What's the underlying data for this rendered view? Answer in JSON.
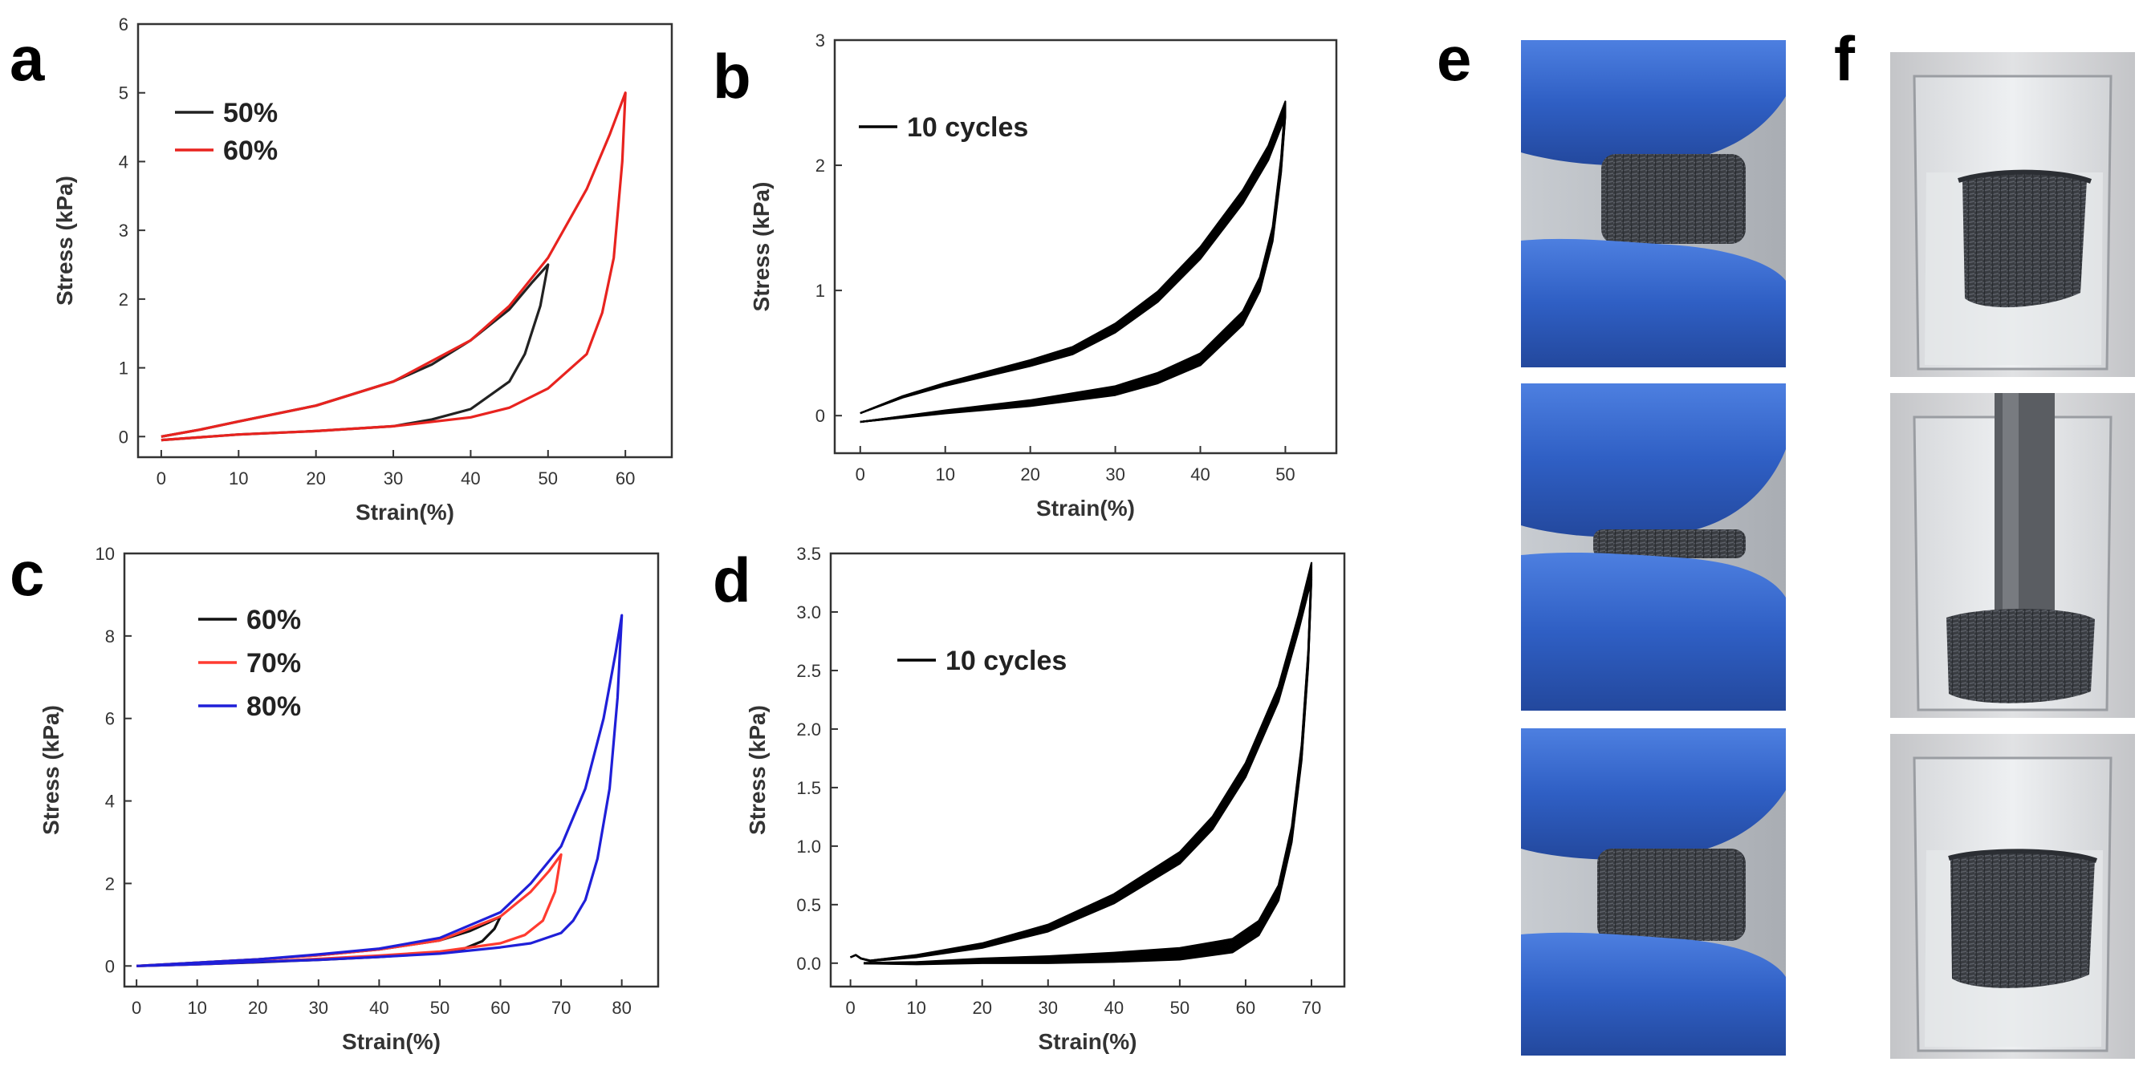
{
  "panel_letters": [
    "a",
    "b",
    "c",
    "d",
    "e",
    "f"
  ],
  "chart_data": [
    {
      "id": "a",
      "type": "line",
      "title": "",
      "xlabel": "Strain(%)",
      "ylabel": "Stress (kPa)",
      "xlim": [
        -3,
        66
      ],
      "ylim": [
        -0.3,
        6
      ],
      "xticks": [
        0,
        10,
        20,
        30,
        40,
        50,
        60
      ],
      "yticks": [
        0,
        1,
        2,
        3,
        4,
        5,
        6
      ],
      "xtick_labels": [
        "0",
        "10",
        "20",
        "30",
        "40",
        "50",
        "60"
      ],
      "ytick_labels": [
        "0",
        "1",
        "2",
        "3",
        "4",
        "5",
        "6"
      ],
      "legend_position": "top-left",
      "grid": false,
      "series": [
        {
          "name": "50%",
          "color": "#222222",
          "loading": [
            [
              0,
              0
            ],
            [
              5,
              0.1
            ],
            [
              10,
              0.22
            ],
            [
              20,
              0.45
            ],
            [
              30,
              0.8
            ],
            [
              35,
              1.05
            ],
            [
              40,
              1.4
            ],
            [
              45,
              1.85
            ],
            [
              48,
              2.25
            ],
            [
              50,
              2.5
            ]
          ],
          "unloading": [
            [
              50,
              2.5
            ],
            [
              49,
              1.9
            ],
            [
              47,
              1.2
            ],
            [
              45,
              0.8
            ],
            [
              40,
              0.4
            ],
            [
              35,
              0.25
            ],
            [
              30,
              0.15
            ],
            [
              20,
              0.08
            ],
            [
              10,
              0.03
            ],
            [
              0,
              -0.05
            ]
          ]
        },
        {
          "name": "60%",
          "color": "#e8231f",
          "loading": [
            [
              0,
              0
            ],
            [
              5,
              0.1
            ],
            [
              10,
              0.22
            ],
            [
              20,
              0.45
            ],
            [
              30,
              0.8
            ],
            [
              40,
              1.4
            ],
            [
              45,
              1.9
            ],
            [
              50,
              2.6
            ],
            [
              55,
              3.6
            ],
            [
              58,
              4.4
            ],
            [
              60,
              5.0
            ]
          ],
          "unloading": [
            [
              60,
              5.0
            ],
            [
              59.6,
              4.0
            ],
            [
              58.5,
              2.6
            ],
            [
              57,
              1.8
            ],
            [
              55,
              1.2
            ],
            [
              50,
              0.7
            ],
            [
              45,
              0.42
            ],
            [
              40,
              0.28
            ],
            [
              30,
              0.15
            ],
            [
              20,
              0.08
            ],
            [
              10,
              0.03
            ],
            [
              0,
              -0.05
            ]
          ]
        }
      ]
    },
    {
      "id": "b",
      "type": "line",
      "title": "",
      "xlabel": "Strain(%)",
      "ylabel": "Stress (kPa)",
      "xlim": [
        -3,
        56
      ],
      "ylim": [
        -0.3,
        3
      ],
      "xticks": [
        0,
        10,
        20,
        30,
        40,
        50
      ],
      "yticks": [
        0,
        1,
        2,
        3
      ],
      "xtick_labels": [
        "0",
        "10",
        "20",
        "30",
        "40",
        "50"
      ],
      "ytick_labels": [
        "0",
        "1",
        "2",
        "3"
      ],
      "legend_position": "top-left",
      "grid": false,
      "series": [
        {
          "name": "10 cycles",
          "color": "#000000",
          "cycles": 10,
          "loading": [
            [
              0,
              0.02
            ],
            [
              5,
              0.15
            ],
            [
              10,
              0.25
            ],
            [
              20,
              0.42
            ],
            [
              25,
              0.52
            ],
            [
              30,
              0.7
            ],
            [
              35,
              0.95
            ],
            [
              40,
              1.3
            ],
            [
              45,
              1.75
            ],
            [
              48,
              2.1
            ],
            [
              50,
              2.45
            ]
          ],
          "unloading": [
            [
              50,
              2.45
            ],
            [
              49.5,
              2.0
            ],
            [
              48.5,
              1.45
            ],
            [
              47,
              1.05
            ],
            [
              45,
              0.78
            ],
            [
              40,
              0.45
            ],
            [
              35,
              0.3
            ],
            [
              30,
              0.2
            ],
            [
              20,
              0.1
            ],
            [
              10,
              0.03
            ],
            [
              0,
              -0.05
            ]
          ]
        }
      ]
    },
    {
      "id": "c",
      "type": "line",
      "title": "",
      "xlabel": "Strain(%)",
      "ylabel": "Stress (kPa)",
      "xlim": [
        -2,
        86
      ],
      "ylim": [
        -0.5,
        10
      ],
      "xticks": [
        0,
        10,
        20,
        30,
        40,
        50,
        60,
        70,
        80
      ],
      "yticks": [
        0,
        2,
        4,
        6,
        8,
        10
      ],
      "xtick_labels": [
        "0",
        "10",
        "20",
        "30",
        "40",
        "50",
        "60",
        "70",
        "80"
      ],
      "ytick_labels": [
        "0",
        "2",
        "4",
        "6",
        "8",
        "10"
      ],
      "legend_position": "top-left",
      "grid": false,
      "series": [
        {
          "name": "60%",
          "color": "#111111",
          "loading": [
            [
              0,
              0
            ],
            [
              10,
              0.08
            ],
            [
              20,
              0.16
            ],
            [
              30,
              0.26
            ],
            [
              40,
              0.4
            ],
            [
              50,
              0.62
            ],
            [
              55,
              0.85
            ],
            [
              58,
              1.05
            ],
            [
              60,
              1.2
            ]
          ],
          "unloading": [
            [
              60,
              1.2
            ],
            [
              59,
              0.9
            ],
            [
              57,
              0.6
            ],
            [
              54,
              0.42
            ],
            [
              50,
              0.32
            ],
            [
              40,
              0.22
            ],
            [
              30,
              0.15
            ],
            [
              20,
              0.09
            ],
            [
              10,
              0.04
            ],
            [
              0,
              0
            ]
          ]
        },
        {
          "name": "70%",
          "color": "#ff3b30",
          "loading": [
            [
              0,
              0
            ],
            [
              10,
              0.08
            ],
            [
              20,
              0.16
            ],
            [
              30,
              0.26
            ],
            [
              40,
              0.4
            ],
            [
              50,
              0.62
            ],
            [
              60,
              1.2
            ],
            [
              65,
              1.8
            ],
            [
              68,
              2.3
            ],
            [
              70,
              2.7
            ]
          ],
          "unloading": [
            [
              70,
              2.7
            ],
            [
              69,
              1.8
            ],
            [
              67,
              1.1
            ],
            [
              64,
              0.75
            ],
            [
              60,
              0.55
            ],
            [
              50,
              0.35
            ],
            [
              40,
              0.25
            ],
            [
              30,
              0.17
            ],
            [
              20,
              0.1
            ],
            [
              10,
              0.04
            ],
            [
              0,
              0
            ]
          ]
        },
        {
          "name": "80%",
          "color": "#1f1fd8",
          "loading": [
            [
              0,
              0
            ],
            [
              10,
              0.08
            ],
            [
              20,
              0.16
            ],
            [
              30,
              0.28
            ],
            [
              40,
              0.42
            ],
            [
              50,
              0.68
            ],
            [
              60,
              1.3
            ],
            [
              65,
              2.0
            ],
            [
              70,
              2.9
            ],
            [
              74,
              4.3
            ],
            [
              77,
              6.0
            ],
            [
              79,
              7.6
            ],
            [
              80,
              8.5
            ]
          ],
          "unloading": [
            [
              80,
              8.5
            ],
            [
              79.3,
              6.5
            ],
            [
              78,
              4.3
            ],
            [
              76,
              2.6
            ],
            [
              74,
              1.6
            ],
            [
              72,
              1.1
            ],
            [
              70,
              0.8
            ],
            [
              65,
              0.55
            ],
            [
              60,
              0.45
            ],
            [
              50,
              0.3
            ],
            [
              40,
              0.22
            ],
            [
              30,
              0.15
            ],
            [
              20,
              0.1
            ],
            [
              10,
              0.04
            ],
            [
              0,
              0
            ]
          ]
        }
      ]
    },
    {
      "id": "d",
      "type": "line",
      "title": "",
      "xlabel": "Strain(%)",
      "ylabel": "Stress (kPa)",
      "xlim": [
        -3,
        75
      ],
      "ylim": [
        -0.2,
        3.5
      ],
      "xticks": [
        0,
        10,
        20,
        30,
        40,
        50,
        60,
        70
      ],
      "yticks": [
        0,
        0.5,
        1,
        1.5,
        2,
        2.5,
        3,
        3.5
      ],
      "xtick_labels": [
        "0",
        "10",
        "20",
        "30",
        "40",
        "50",
        "60",
        "70"
      ],
      "ytick_labels": [
        "0.0",
        "0.5",
        "1.0",
        "1.5",
        "2.0",
        "2.5",
        "3.0",
        "3.5"
      ],
      "legend_position": "top-left",
      "grid": false,
      "series": [
        {
          "name": "10 cycles",
          "color": "#000000",
          "cycles": 10,
          "loading": [
            [
              0,
              0.05
            ],
            [
              0.8,
              0.07
            ],
            [
              1.6,
              0.04
            ],
            [
              3,
              0.02
            ],
            [
              10,
              0.06
            ],
            [
              20,
              0.15
            ],
            [
              30,
              0.3
            ],
            [
              40,
              0.55
            ],
            [
              50,
              0.9
            ],
            [
              55,
              1.2
            ],
            [
              60,
              1.65
            ],
            [
              65,
              2.3
            ],
            [
              68,
              2.9
            ],
            [
              70,
              3.35
            ]
          ],
          "unloading": [
            [
              70,
              3.35
            ],
            [
              69.5,
              2.6
            ],
            [
              68.5,
              1.8
            ],
            [
              67,
              1.1
            ],
            [
              65,
              0.6
            ],
            [
              62,
              0.3
            ],
            [
              58,
              0.15
            ],
            [
              50,
              0.08
            ],
            [
              40,
              0.05
            ],
            [
              30,
              0.03
            ],
            [
              20,
              0.02
            ],
            [
              10,
              0.0
            ],
            [
              2,
              0.0
            ]
          ]
        }
      ]
    }
  ]
}
